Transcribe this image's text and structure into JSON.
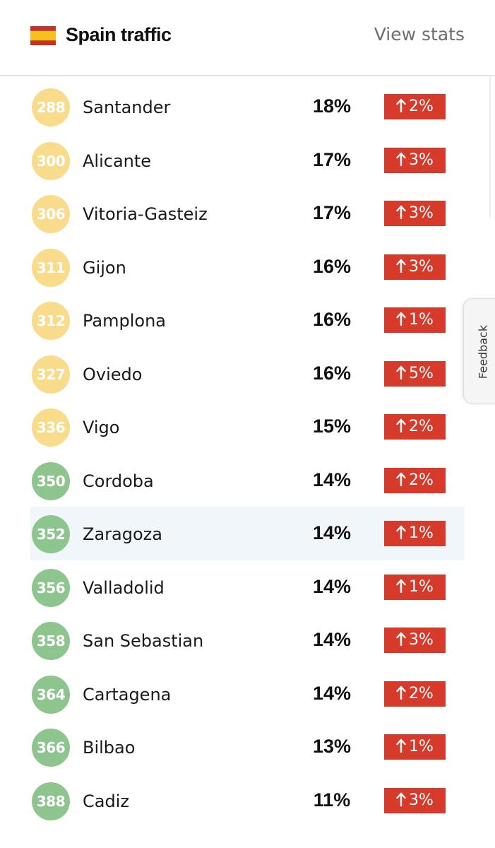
{
  "header": {
    "title": "Spain traffic",
    "view_stats_label": "View stats",
    "flag_icon": "spain-flag-icon"
  },
  "colors": {
    "rank_yellow": "#f8dc8b",
    "rank_green": "#8ec58f",
    "delta_red": "#d63a2b",
    "highlight_row": "#f1f6fa"
  },
  "rows": [
    {
      "rank": "288",
      "city": "Santander",
      "congestion": "18%",
      "change": "2%",
      "trend": "up",
      "tier": "yellow"
    },
    {
      "rank": "300",
      "city": "Alicante",
      "congestion": "17%",
      "change": "3%",
      "trend": "up",
      "tier": "yellow"
    },
    {
      "rank": "306",
      "city": "Vitoria-Gasteiz",
      "congestion": "17%",
      "change": "3%",
      "trend": "up",
      "tier": "yellow"
    },
    {
      "rank": "311",
      "city": "Gijon",
      "congestion": "16%",
      "change": "3%",
      "trend": "up",
      "tier": "yellow"
    },
    {
      "rank": "312",
      "city": "Pamplona",
      "congestion": "16%",
      "change": "1%",
      "trend": "up",
      "tier": "yellow"
    },
    {
      "rank": "327",
      "city": "Oviedo",
      "congestion": "16%",
      "change": "5%",
      "trend": "up",
      "tier": "yellow"
    },
    {
      "rank": "336",
      "city": "Vigo",
      "congestion": "15%",
      "change": "2%",
      "trend": "up",
      "tier": "yellow"
    },
    {
      "rank": "350",
      "city": "Cordoba",
      "congestion": "14%",
      "change": "2%",
      "trend": "up",
      "tier": "green"
    },
    {
      "rank": "352",
      "city": "Zaragoza",
      "congestion": "14%",
      "change": "1%",
      "trend": "up",
      "tier": "green",
      "highlighted": true
    },
    {
      "rank": "356",
      "city": "Valladolid",
      "congestion": "14%",
      "change": "1%",
      "trend": "up",
      "tier": "green"
    },
    {
      "rank": "358",
      "city": "San Sebastian",
      "congestion": "14%",
      "change": "3%",
      "trend": "up",
      "tier": "green"
    },
    {
      "rank": "364",
      "city": "Cartagena",
      "congestion": "14%",
      "change": "2%",
      "trend": "up",
      "tier": "green"
    },
    {
      "rank": "366",
      "city": "Bilbao",
      "congestion": "13%",
      "change": "1%",
      "trend": "up",
      "tier": "green"
    },
    {
      "rank": "388",
      "city": "Cadiz",
      "congestion": "11%",
      "change": "3%",
      "trend": "up",
      "tier": "green"
    }
  ],
  "feedback_tab": {
    "label": "Feedback"
  }
}
